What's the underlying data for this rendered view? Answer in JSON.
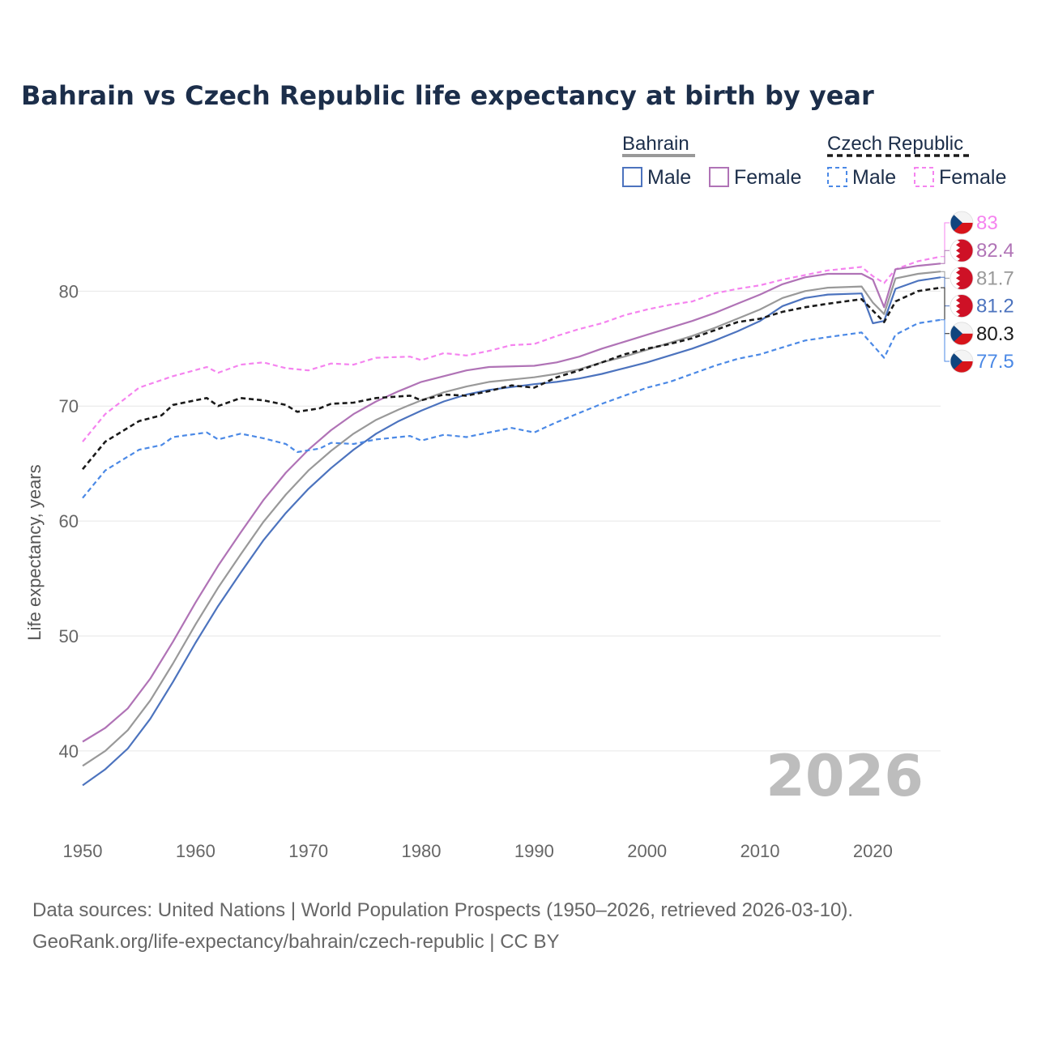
{
  "title": "Bahrain vs Czech Republic life expectancy at birth by year",
  "legend": {
    "bahrain": "Bahrain",
    "czech": "Czech Republic",
    "male": "Male",
    "female": "Female"
  },
  "year_label": "2026",
  "source": {
    "line1": "Data sources: United Nations | World Population Prospects (1950–2026, retrieved 2026-03-10).",
    "line2": "GeoRank.org/life-expectancy/bahrain/czech-republic | CC BY"
  },
  "colors": {
    "bahrain_male": "#4c73be",
    "bahrain_female": "#b073b6",
    "bahrain_total": "#999999",
    "czech_male": "#4b89e6",
    "czech_female": "#f583ef",
    "czech_total": "#1a1a1a"
  },
  "chart_data": {
    "type": "line",
    "title": "Bahrain vs Czech Republic life expectancy at birth by year",
    "xlabel": "",
    "ylabel": "Life expectancy, years",
    "xlim": [
      1950,
      2026
    ],
    "ylim": [
      34,
      87
    ],
    "xticks": [
      1950,
      1960,
      1970,
      1980,
      1990,
      2000,
      2010,
      2020
    ],
    "yticks": [
      40,
      50,
      60,
      70,
      80
    ],
    "grid": true,
    "series": [
      {
        "key": "czech_female",
        "name": "Czech Republic Female",
        "style": "dashed",
        "color": "#f583ef",
        "end_label": "83",
        "flag": "czech",
        "points": [
          [
            1950,
            66.9
          ],
          [
            1952,
            69.3
          ],
          [
            1955,
            71.6
          ],
          [
            1958,
            72.6
          ],
          [
            1961,
            73.4
          ],
          [
            1962,
            72.9
          ],
          [
            1964,
            73.6
          ],
          [
            1966,
            73.8
          ],
          [
            1968,
            73.3
          ],
          [
            1970,
            73.1
          ],
          [
            1972,
            73.7
          ],
          [
            1974,
            73.6
          ],
          [
            1976,
            74.2
          ],
          [
            1979,
            74.3
          ],
          [
            1980,
            74.0
          ],
          [
            1982,
            74.6
          ],
          [
            1984,
            74.4
          ],
          [
            1986,
            74.8
          ],
          [
            1988,
            75.3
          ],
          [
            1990,
            75.4
          ],
          [
            1992,
            76.1
          ],
          [
            1994,
            76.7
          ],
          [
            1996,
            77.2
          ],
          [
            1998,
            77.9
          ],
          [
            2000,
            78.4
          ],
          [
            2002,
            78.8
          ],
          [
            2004,
            79.1
          ],
          [
            2006,
            79.8
          ],
          [
            2008,
            80.2
          ],
          [
            2010,
            80.5
          ],
          [
            2012,
            81.0
          ],
          [
            2014,
            81.4
          ],
          [
            2016,
            81.8
          ],
          [
            2019,
            82.1
          ],
          [
            2020,
            81.3
          ],
          [
            2021,
            80.7
          ],
          [
            2022,
            81.9
          ],
          [
            2024,
            82.6
          ],
          [
            2026,
            83.0
          ]
        ]
      },
      {
        "key": "bahrain_female",
        "name": "Bahrain Female",
        "style": "solid",
        "color": "#b073b6",
        "end_label": "82.4",
        "flag": "bahrain",
        "points": [
          [
            1950,
            40.8
          ],
          [
            1952,
            42.0
          ],
          [
            1954,
            43.7
          ],
          [
            1956,
            46.3
          ],
          [
            1958,
            49.5
          ],
          [
            1960,
            52.9
          ],
          [
            1962,
            56.1
          ],
          [
            1964,
            59.0
          ],
          [
            1966,
            61.8
          ],
          [
            1968,
            64.2
          ],
          [
            1970,
            66.2
          ],
          [
            1972,
            67.9
          ],
          [
            1974,
            69.3
          ],
          [
            1976,
            70.4
          ],
          [
            1978,
            71.3
          ],
          [
            1980,
            72.1
          ],
          [
            1982,
            72.6
          ],
          [
            1984,
            73.1
          ],
          [
            1986,
            73.4
          ],
          [
            1990,
            73.5
          ],
          [
            1992,
            73.8
          ],
          [
            1994,
            74.3
          ],
          [
            1996,
            75.0
          ],
          [
            1998,
            75.6
          ],
          [
            2000,
            76.2
          ],
          [
            2002,
            76.8
          ],
          [
            2004,
            77.4
          ],
          [
            2006,
            78.1
          ],
          [
            2008,
            78.9
          ],
          [
            2010,
            79.7
          ],
          [
            2012,
            80.6
          ],
          [
            2014,
            81.2
          ],
          [
            2016,
            81.5
          ],
          [
            2019,
            81.5
          ],
          [
            2020,
            81.0
          ],
          [
            2021,
            78.6
          ],
          [
            2022,
            81.9
          ],
          [
            2024,
            82.2
          ],
          [
            2026,
            82.4
          ]
        ]
      },
      {
        "key": "bahrain_total",
        "name": "Bahrain",
        "style": "solid",
        "color": "#999999",
        "end_label": "81.7",
        "flag": "bahrain",
        "points": [
          [
            1950,
            38.7
          ],
          [
            1952,
            40.0
          ],
          [
            1954,
            41.8
          ],
          [
            1956,
            44.4
          ],
          [
            1958,
            47.6
          ],
          [
            1960,
            51.0
          ],
          [
            1962,
            54.2
          ],
          [
            1964,
            57.1
          ],
          [
            1966,
            59.9
          ],
          [
            1968,
            62.3
          ],
          [
            1970,
            64.4
          ],
          [
            1972,
            66.1
          ],
          [
            1974,
            67.6
          ],
          [
            1976,
            68.8
          ],
          [
            1978,
            69.7
          ],
          [
            1980,
            70.5
          ],
          [
            1982,
            71.2
          ],
          [
            1984,
            71.7
          ],
          [
            1986,
            72.1
          ],
          [
            1990,
            72.5
          ],
          [
            1992,
            72.8
          ],
          [
            1994,
            73.2
          ],
          [
            1996,
            73.8
          ],
          [
            1998,
            74.3
          ],
          [
            2000,
            74.9
          ],
          [
            2002,
            75.5
          ],
          [
            2004,
            76.1
          ],
          [
            2006,
            76.8
          ],
          [
            2008,
            77.6
          ],
          [
            2010,
            78.4
          ],
          [
            2012,
            79.4
          ],
          [
            2014,
            80.0
          ],
          [
            2016,
            80.3
          ],
          [
            2019,
            80.4
          ],
          [
            2020,
            79.0
          ],
          [
            2021,
            78.0
          ],
          [
            2022,
            81.1
          ],
          [
            2024,
            81.5
          ],
          [
            2026,
            81.7
          ]
        ]
      },
      {
        "key": "bahrain_male",
        "name": "Bahrain Male",
        "style": "solid",
        "color": "#4c73be",
        "end_label": "81.2",
        "flag": "bahrain",
        "points": [
          [
            1950,
            37.0
          ],
          [
            1952,
            38.4
          ],
          [
            1954,
            40.2
          ],
          [
            1956,
            42.8
          ],
          [
            1958,
            46.0
          ],
          [
            1960,
            49.4
          ],
          [
            1962,
            52.6
          ],
          [
            1964,
            55.5
          ],
          [
            1966,
            58.3
          ],
          [
            1968,
            60.7
          ],
          [
            1970,
            62.8
          ],
          [
            1972,
            64.6
          ],
          [
            1974,
            66.2
          ],
          [
            1976,
            67.6
          ],
          [
            1978,
            68.7
          ],
          [
            1980,
            69.6
          ],
          [
            1982,
            70.4
          ],
          [
            1984,
            71.0
          ],
          [
            1986,
            71.4
          ],
          [
            1990,
            71.9
          ],
          [
            1992,
            72.1
          ],
          [
            1994,
            72.4
          ],
          [
            1996,
            72.8
          ],
          [
            1998,
            73.3
          ],
          [
            2000,
            73.8
          ],
          [
            2002,
            74.4
          ],
          [
            2004,
            75.0
          ],
          [
            2006,
            75.7
          ],
          [
            2008,
            76.5
          ],
          [
            2010,
            77.4
          ],
          [
            2012,
            78.7
          ],
          [
            2014,
            79.4
          ],
          [
            2016,
            79.7
          ],
          [
            2019,
            79.8
          ],
          [
            2020,
            77.2
          ],
          [
            2021,
            77.4
          ],
          [
            2022,
            80.2
          ],
          [
            2024,
            80.9
          ],
          [
            2026,
            81.2
          ]
        ]
      },
      {
        "key": "czech_total",
        "name": "Czech Republic",
        "style": "dashed",
        "color": "#1a1a1a",
        "end_label": "80.3",
        "flag": "czech",
        "points": [
          [
            1950,
            64.5
          ],
          [
            1952,
            66.9
          ],
          [
            1955,
            68.7
          ],
          [
            1957,
            69.2
          ],
          [
            1958,
            70.1
          ],
          [
            1960,
            70.5
          ],
          [
            1961,
            70.7
          ],
          [
            1962,
            70.0
          ],
          [
            1964,
            70.7
          ],
          [
            1966,
            70.5
          ],
          [
            1968,
            70.1
          ],
          [
            1969,
            69.5
          ],
          [
            1971,
            69.8
          ],
          [
            1972,
            70.2
          ],
          [
            1974,
            70.3
          ],
          [
            1976,
            70.7
          ],
          [
            1979,
            70.9
          ],
          [
            1980,
            70.5
          ],
          [
            1982,
            71.0
          ],
          [
            1984,
            70.9
          ],
          [
            1986,
            71.3
          ],
          [
            1988,
            71.8
          ],
          [
            1990,
            71.6
          ],
          [
            1992,
            72.5
          ],
          [
            1994,
            73.1
          ],
          [
            1996,
            73.8
          ],
          [
            1998,
            74.5
          ],
          [
            2000,
            75.0
          ],
          [
            2002,
            75.4
          ],
          [
            2004,
            75.9
          ],
          [
            2006,
            76.6
          ],
          [
            2008,
            77.3
          ],
          [
            2010,
            77.6
          ],
          [
            2012,
            78.2
          ],
          [
            2014,
            78.6
          ],
          [
            2016,
            78.9
          ],
          [
            2019,
            79.3
          ],
          [
            2020,
            78.3
          ],
          [
            2021,
            77.3
          ],
          [
            2022,
            79.1
          ],
          [
            2024,
            80.0
          ],
          [
            2026,
            80.3
          ]
        ]
      },
      {
        "key": "czech_male",
        "name": "Czech Republic Male",
        "style": "dashed",
        "color": "#4b89e6",
        "end_label": "77.5",
        "flag": "czech",
        "points": [
          [
            1950,
            62.0
          ],
          [
            1952,
            64.4
          ],
          [
            1955,
            66.2
          ],
          [
            1957,
            66.6
          ],
          [
            1958,
            67.3
          ],
          [
            1961,
            67.7
          ],
          [
            1962,
            67.1
          ],
          [
            1964,
            67.6
          ],
          [
            1966,
            67.2
          ],
          [
            1968,
            66.7
          ],
          [
            1969,
            66.0
          ],
          [
            1971,
            66.3
          ],
          [
            1972,
            66.8
          ],
          [
            1974,
            66.7
          ],
          [
            1976,
            67.1
          ],
          [
            1979,
            67.4
          ],
          [
            1980,
            67.0
          ],
          [
            1982,
            67.5
          ],
          [
            1984,
            67.3
          ],
          [
            1986,
            67.7
          ],
          [
            1988,
            68.1
          ],
          [
            1990,
            67.7
          ],
          [
            1992,
            68.6
          ],
          [
            1994,
            69.4
          ],
          [
            1996,
            70.2
          ],
          [
            1998,
            70.9
          ],
          [
            2000,
            71.6
          ],
          [
            2002,
            72.1
          ],
          [
            2004,
            72.8
          ],
          [
            2006,
            73.5
          ],
          [
            2008,
            74.1
          ],
          [
            2010,
            74.5
          ],
          [
            2012,
            75.1
          ],
          [
            2014,
            75.7
          ],
          [
            2016,
            76.0
          ],
          [
            2019,
            76.4
          ],
          [
            2020,
            75.3
          ],
          [
            2021,
            74.2
          ],
          [
            2022,
            76.2
          ],
          [
            2024,
            77.2
          ],
          [
            2026,
            77.5
          ]
        ]
      }
    ]
  }
}
